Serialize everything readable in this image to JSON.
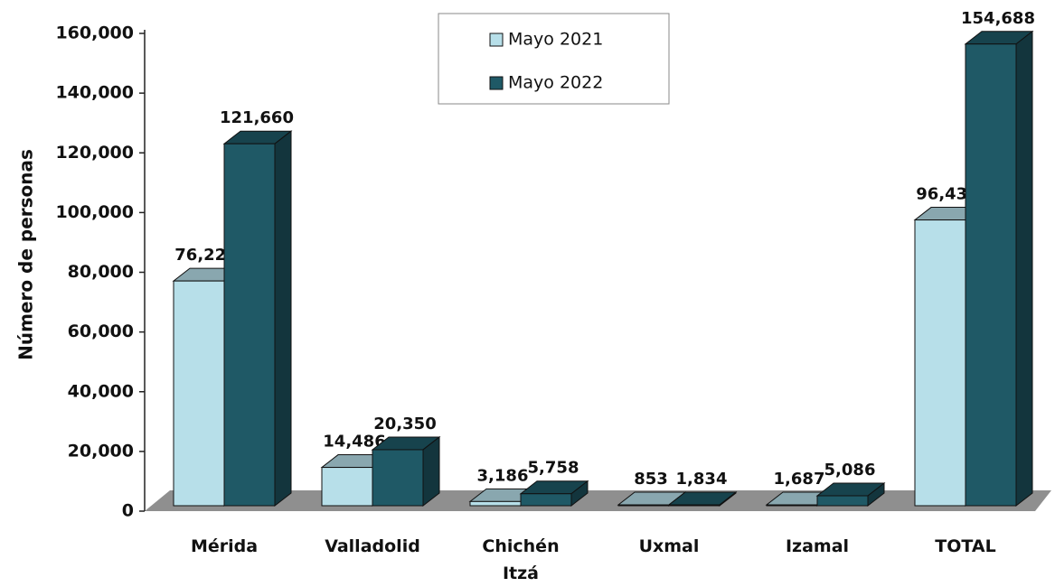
{
  "chart_data": {
    "type": "bar3d",
    "categories": [
      "Mérida",
      "Valladolid",
      "Chichén Itzá",
      "Uxmal",
      "Izamal",
      "TOTAL"
    ],
    "y_label": "Número de personas",
    "series": [
      {
        "name": "Mayo 2021",
        "color": "#b7dfe9",
        "values": [
          76220,
          14486,
          3186,
          853,
          1687,
          96432
        ],
        "value_labels": [
          "76,220",
          "14,486",
          "3,186",
          "853",
          "1,687",
          "96,432"
        ]
      },
      {
        "name": "Mayo 2022",
        "color": "#1f5966",
        "values": [
          121660,
          20350,
          5758,
          1834,
          5086,
          154688
        ],
        "value_labels": [
          "121,660",
          "20,350",
          "5,758",
          "1,834",
          "5,086",
          "154,688"
        ]
      }
    ],
    "ylim": [
      0,
      160000
    ],
    "yticks": [
      0,
      {
        "value": 20000,
        "label": "20,000"
      },
      {
        "value": 40000,
        "label": "40,000"
      },
      {
        "value": 60000,
        "label": "60,000"
      },
      {
        "value": 80000,
        "label": "80,000"
      },
      {
        "value": 100000,
        "label": "100,000"
      },
      {
        "value": 120000,
        "label": "120,000"
      },
      {
        "value": 140000,
        "label": "140,000"
      },
      {
        "value": 160000,
        "label": "160,000"
      }
    ],
    "legend": "top-center"
  }
}
